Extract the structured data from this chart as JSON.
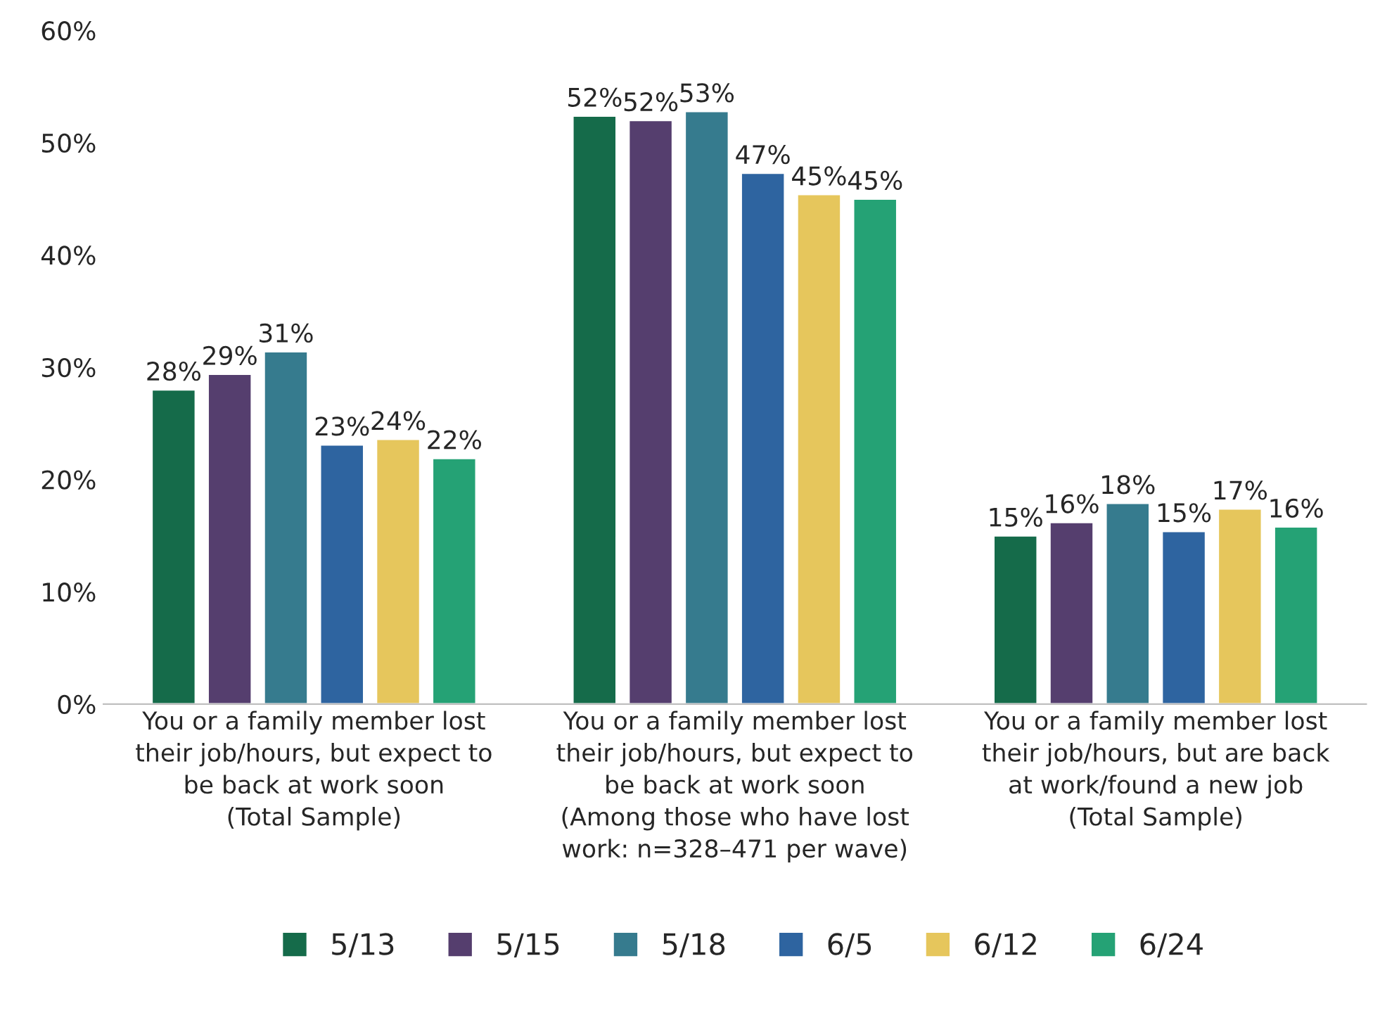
{
  "chart_data": {
    "type": "bar",
    "categories": [
      "You or a family member lost\ntheir job/hours, but expect to\nbe back at work soon\n(Total Sample)",
      "You or a family member lost\ntheir job/hours, but expect to\nbe back at work soon\n(Among those who have lost\nwork: n=328–471 per wave)",
      "You or a family member lost\ntheir job/hours, but are back\nat work/found a new job\n(Total Sample)"
    ],
    "series": [
      {
        "name": "5/13",
        "color": "#156b4a",
        "values": [
          28.0,
          52.4,
          15.0
        ],
        "value_labels": [
          "28%",
          "52%",
          "15%"
        ]
      },
      {
        "name": "5/15",
        "color": "#553e6e",
        "values": [
          29.4,
          52.0,
          16.2
        ],
        "value_labels": [
          "29%",
          "52%",
          "16%"
        ]
      },
      {
        "name": "5/18",
        "color": "#367b8e",
        "values": [
          31.4,
          52.8,
          17.9
        ],
        "value_labels": [
          "31%",
          "53%",
          "18%"
        ]
      },
      {
        "name": "6/5",
        "color": "#2e64a0",
        "values": [
          23.1,
          47.3,
          15.4
        ],
        "value_labels": [
          "23%",
          "47%",
          "15%"
        ]
      },
      {
        "name": "6/12",
        "color": "#e6c65c",
        "values": [
          23.6,
          45.4,
          17.4
        ],
        "value_labels": [
          "24%",
          "45%",
          "17%"
        ]
      },
      {
        "name": "6/24",
        "color": "#25a275",
        "values": [
          21.9,
          45.0,
          15.8
        ],
        "value_labels": [
          "22%",
          "45%",
          "16%"
        ]
      }
    ],
    "ylim": [
      0,
      60
    ],
    "yticks": [
      {
        "value": 0,
        "label": "0%"
      },
      {
        "value": 10,
        "label": "10%"
      },
      {
        "value": 20,
        "label": "20%"
      },
      {
        "value": 30,
        "label": "30%"
      },
      {
        "value": 40,
        "label": "40%"
      },
      {
        "value": 50,
        "label": "50%"
      },
      {
        "value": 60,
        "label": "60%"
      }
    ],
    "grid": false,
    "legend": "bottom"
  }
}
